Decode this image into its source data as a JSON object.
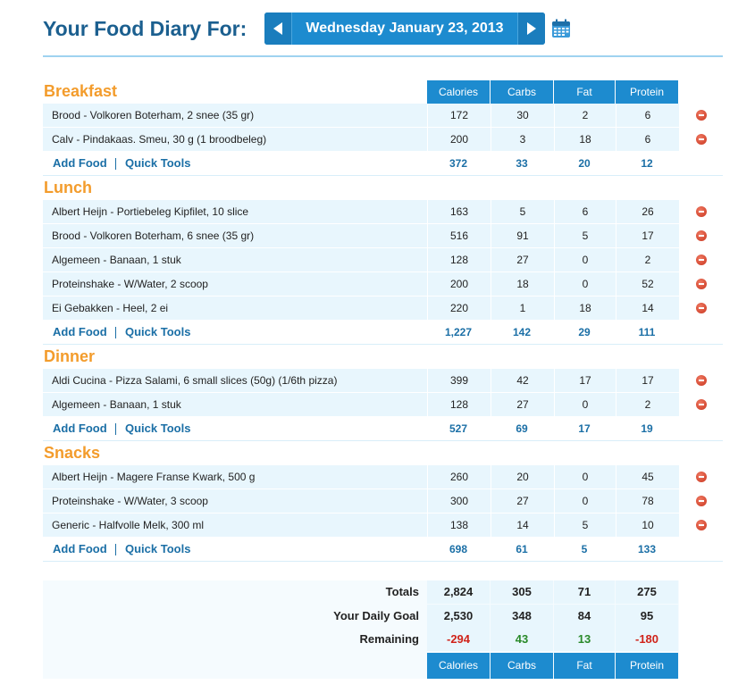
{
  "header": {
    "title": "Your Food Diary For:",
    "date": "Wednesday January 23, 2013"
  },
  "columns": [
    "Calories",
    "Carbs",
    "Fat",
    "Protein"
  ],
  "links": {
    "add_food": "Add Food",
    "quick_tools": "Quick Tools"
  },
  "meals": [
    {
      "name": "Breakfast",
      "foods": [
        {
          "name": "Brood - Volkoren Boterham, 2 snee (35 gr)",
          "calories": "172",
          "carbs": "30",
          "fat": "2",
          "protein": "6"
        },
        {
          "name": "Calv - Pindakaas. Smeu, 30 g (1 broodbeleg)",
          "calories": "200",
          "carbs": "3",
          "fat": "18",
          "protein": "6"
        }
      ],
      "totals": {
        "calories": "372",
        "carbs": "33",
        "fat": "20",
        "protein": "12"
      }
    },
    {
      "name": "Lunch",
      "foods": [
        {
          "name": "Albert Heijn - Portiebeleg Kipfilet, 10 slice",
          "calories": "163",
          "carbs": "5",
          "fat": "6",
          "protein": "26"
        },
        {
          "name": "Brood - Volkoren Boterham, 6 snee (35 gr)",
          "calories": "516",
          "carbs": "91",
          "fat": "5",
          "protein": "17"
        },
        {
          "name": "Algemeen - Banaan, 1 stuk",
          "calories": "128",
          "carbs": "27",
          "fat": "0",
          "protein": "2"
        },
        {
          "name": "Proteinshake - W/Water, 2 scoop",
          "calories": "200",
          "carbs": "18",
          "fat": "0",
          "protein": "52"
        },
        {
          "name": "Ei Gebakken - Heel, 2 ei",
          "calories": "220",
          "carbs": "1",
          "fat": "18",
          "protein": "14"
        }
      ],
      "totals": {
        "calories": "1,227",
        "carbs": "142",
        "fat": "29",
        "protein": "111"
      }
    },
    {
      "name": "Dinner",
      "foods": [
        {
          "name": "Aldi Cucina - Pizza Salami, 6 small slices (50g) (1/6th pizza)",
          "calories": "399",
          "carbs": "42",
          "fat": "17",
          "protein": "17"
        },
        {
          "name": "Algemeen - Banaan, 1 stuk",
          "calories": "128",
          "carbs": "27",
          "fat": "0",
          "protein": "2"
        }
      ],
      "totals": {
        "calories": "527",
        "carbs": "69",
        "fat": "17",
        "protein": "19"
      }
    },
    {
      "name": "Snacks",
      "foods": [
        {
          "name": "Albert Heijn - Magere Franse Kwark, 500 g",
          "calories": "260",
          "carbs": "20",
          "fat": "0",
          "protein": "45"
        },
        {
          "name": "Proteinshake - W/Water, 3 scoop",
          "calories": "300",
          "carbs": "27",
          "fat": "0",
          "protein": "78"
        },
        {
          "name": "Generic - Halfvolle Melk, 300 ml",
          "calories": "138",
          "carbs": "14",
          "fat": "5",
          "protein": "10"
        }
      ],
      "totals": {
        "calories": "698",
        "carbs": "61",
        "fat": "5",
        "protein": "133"
      }
    }
  ],
  "summary": {
    "totals": {
      "label": "Totals",
      "calories": "2,824",
      "carbs": "305",
      "fat": "71",
      "protein": "275"
    },
    "goal": {
      "label": "Your Daily Goal",
      "calories": "2,530",
      "carbs": "348",
      "fat": "84",
      "protein": "95"
    },
    "remaining": {
      "label": "Remaining",
      "calories": "-294",
      "carbs": "43",
      "fat": "13",
      "protein": "-180"
    }
  },
  "colors": {
    "title": "#1b5f8f",
    "accent_blue": "#1d8bcf",
    "meal_orange": "#f39c2c",
    "row_bg": "#e8f6fd",
    "negative": "#d0231a",
    "positive": "#2a8a2a"
  }
}
